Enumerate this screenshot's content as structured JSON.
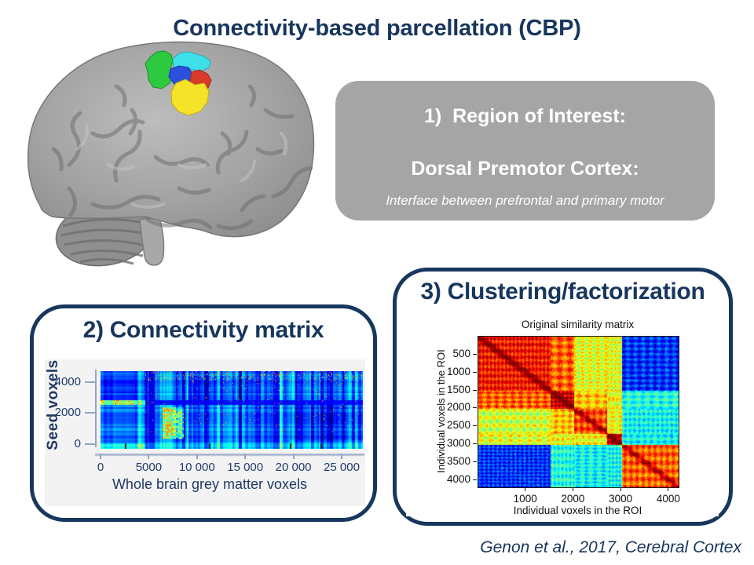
{
  "slide": {
    "title": "Connectivity-based parcellation (CBP)",
    "citation": "Genon et al., 2017, Cerebral Cortex",
    "background": "#FFFFFF"
  },
  "colors": {
    "navy_text": "#17365D",
    "panel_border": "#17375E",
    "grey_box_bg": "#A5A5A5",
    "grey_box_text": "#FFFFFF",
    "plot2_bg": "#F3F3F4",
    "axis_line": "#A9B6D0"
  },
  "roi_box": {
    "line1": "1)  Region of Interest:",
    "line2": "Dorsal Premotor Cortex:",
    "line3": "Interface between prefrontal and primary motor"
  },
  "panels": {
    "connectivity": {
      "heading": "2) Connectivity matrix"
    },
    "clustering": {
      "heading": "3) Clustering/factorization"
    }
  },
  "brain": {
    "description": "Grey lateral-view brain rendering with five colored parcels (dorsal premotor cortex) on the superior frontal surface",
    "parcels": {
      "green": "#2DC93E",
      "cyan": "#3FDFE8",
      "blue": "#2B50DE",
      "red": "#DA3A2B",
      "yellow": "#F5E32A"
    }
  },
  "chart_data": [
    {
      "id": "connectivity_matrix",
      "type": "heatmap",
      "title": "",
      "xlabel": "Whole brain grey matter voxels",
      "ylabel": "Seed voxels",
      "x_tick_labels": [
        "0",
        "5000",
        "10 000",
        "15 000",
        "20 000",
        "25 000"
      ],
      "x_tick_values": [
        0,
        5000,
        10000,
        15000,
        20000,
        25000
      ],
      "xlim": [
        0,
        27200
      ],
      "y_tick_labels": [
        "0",
        "2000",
        "4000"
      ],
      "y_tick_values": [
        0,
        2000,
        4000
      ],
      "ylim": [
        -300,
        4700
      ],
      "colormap": "jet",
      "palette_note": "predominantly blue correlation values with cyan vertical striping and sparse yellow hotspots",
      "features": {
        "left_smooth_band_xmax": 4600,
        "bright_columns_left": [
          3800,
          4500
        ],
        "dark_column": [
          4900,
          5600
        ],
        "bright_row_band_left": [
          2550,
          2850
        ],
        "dark_row_band_right": [
          2550,
          2850
        ],
        "yellow_cluster": {
          "x": [
            6400,
            8600
          ],
          "y": [
            400,
            2400
          ]
        },
        "top_speckle_rows": [
          4100,
          4700
        ],
        "bottom_bright_rows": [
          -300,
          100
        ],
        "darker_region_mid": {
          "x": [
            9000,
            15800
          ],
          "y": [
            2850,
            4400
          ]
        },
        "darker_region_right": {
          "x": [
            19600,
            27200
          ],
          "y": [
            300,
            2550
          ]
        },
        "bottom_axis_marks_x": [
          2500,
          11200,
          19600,
          22800
        ]
      }
    },
    {
      "id": "original_similarity_matrix",
      "type": "heatmap",
      "title": "Original similarity matrix",
      "xlabel": "Individual voxels in the ROI",
      "ylabel": "Individual voxels in the ROI",
      "x_tick_values": [
        1000,
        2000,
        3000,
        4000
      ],
      "y_tick_values": [
        500,
        1000,
        1500,
        2000,
        2500,
        3000,
        3500,
        4000
      ],
      "lim": [
        0,
        4200
      ],
      "colormap": "jet",
      "legend": "none",
      "cluster_bands": [
        0,
        1500,
        2000,
        2700,
        3000,
        4200
      ],
      "block_values": [
        [
          0.86,
          0.78,
          0.6,
          0.6,
          0.17
        ],
        [
          0.78,
          0.92,
          0.68,
          0.62,
          0.4
        ],
        [
          0.58,
          0.68,
          0.8,
          0.62,
          0.38
        ],
        [
          0.6,
          0.62,
          0.62,
          0.9,
          0.38
        ],
        [
          0.17,
          0.4,
          0.38,
          0.38,
          0.78
        ]
      ],
      "diagonal_ridge": 0.2
    }
  ]
}
